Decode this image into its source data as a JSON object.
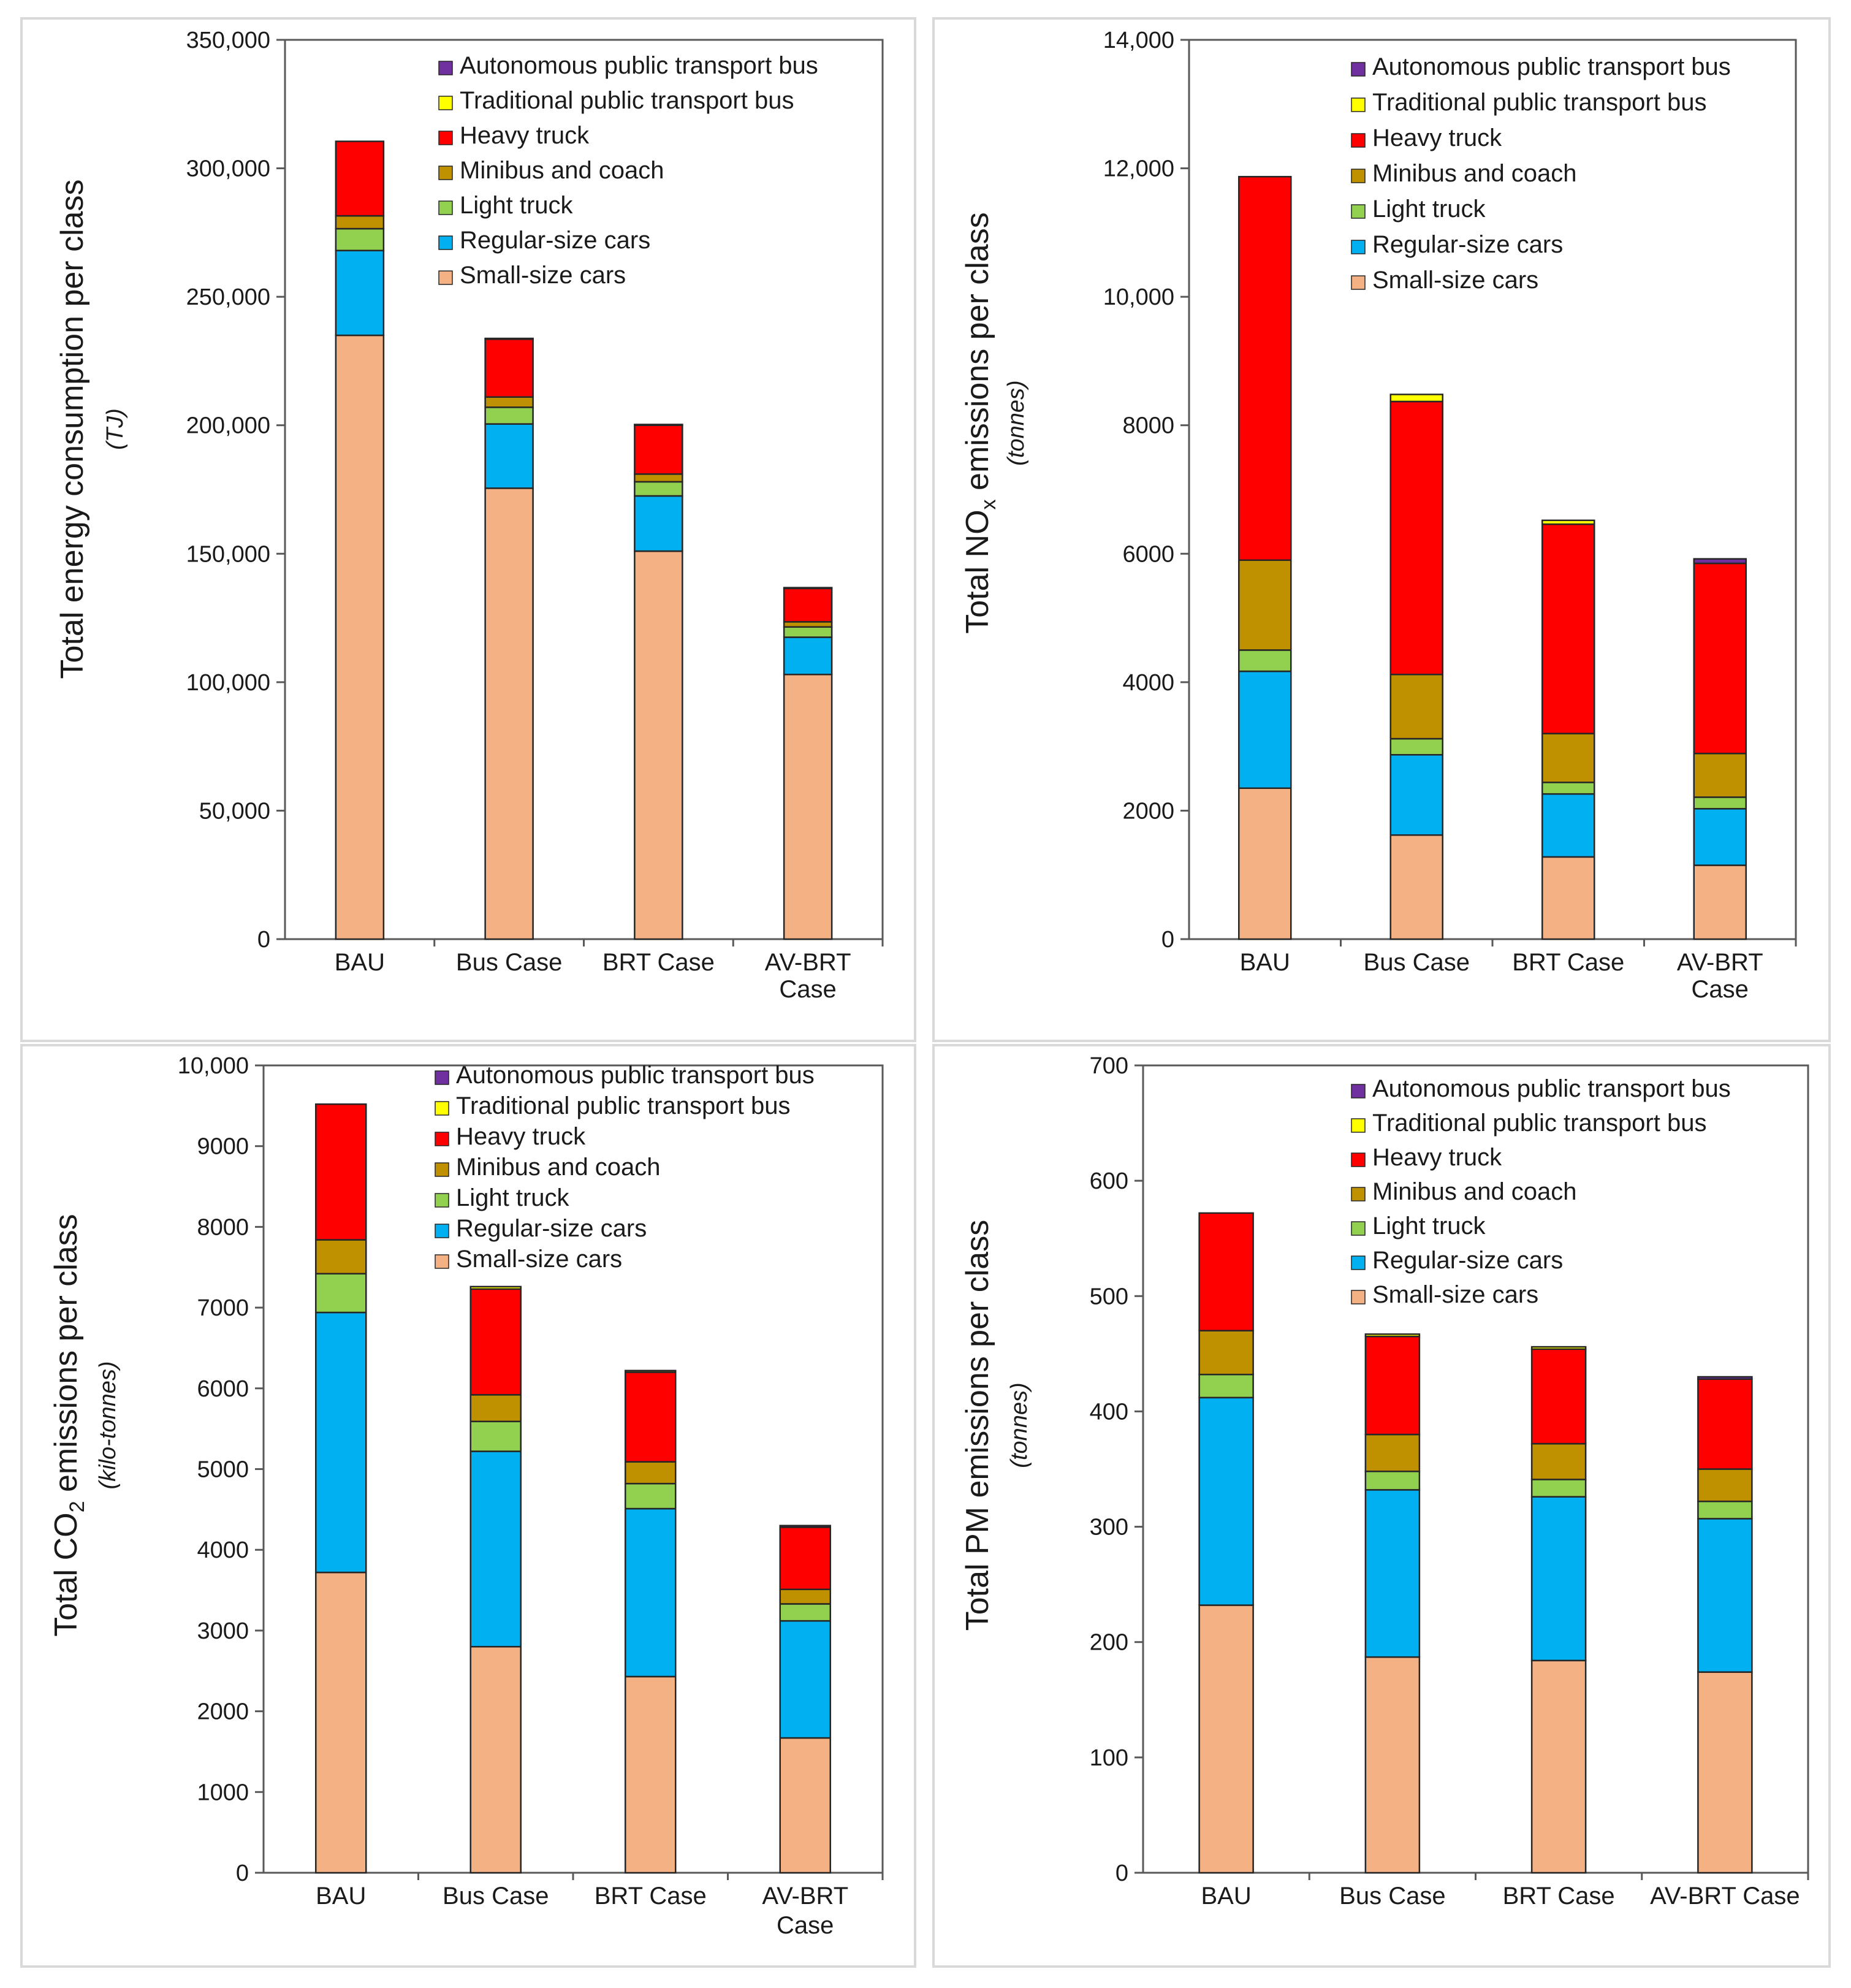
{
  "series_order": [
    "Small-size cars",
    "Regular-size cars",
    "Light truck",
    "Minibus and coach",
    "Heavy truck",
    "Traditional public transport bus",
    "Autonomous public transport bus"
  ],
  "legend_order": [
    "Autonomous public transport bus",
    "Traditional public transport bus",
    "Heavy truck",
    "Minibus and coach",
    "Light truck",
    "Regular-size cars",
    "Small-size cars"
  ],
  "colors": {
    "Small-size cars": "#F4B183",
    "Regular-size cars": "#00B0F0",
    "Light truck": "#92D050",
    "Minibus and coach": "#BF9000",
    "Heavy truck": "#FF0000",
    "Traditional public transport bus": "#FFFF00",
    "Autonomous public transport bus": "#7030A0"
  },
  "chart_data": [
    {
      "type": "bar",
      "stacked": true,
      "title": "",
      "ylabel_main": "Total energy consumption per class",
      "ylabel_sub": null,
      "ylabel_unit": "(TJ)",
      "categories": [
        [
          "BAU"
        ],
        [
          "Bus Case"
        ],
        [
          "BRT Case"
        ],
        [
          "AV-BRT",
          "Case"
        ]
      ],
      "ylim": [
        0,
        350000
      ],
      "yticks": [
        0,
        50000,
        100000,
        150000,
        200000,
        250000,
        300000,
        350000
      ],
      "ytick_labels": [
        "0",
        "50,000",
        "100,000",
        "150,000",
        "200,000",
        "250,000",
        "300,000",
        "350,000"
      ],
      "series": [
        {
          "name": "Small-size cars",
          "values": [
            235000,
            175500,
            151000,
            103000
          ]
        },
        {
          "name": "Regular-size cars",
          "values": [
            33000,
            25000,
            21500,
            14500
          ]
        },
        {
          "name": "Light truck",
          "values": [
            8500,
            6500,
            5500,
            4000
          ]
        },
        {
          "name": "Minibus and coach",
          "values": [
            5000,
            4000,
            3000,
            2000
          ]
        },
        {
          "name": "Heavy truck",
          "values": [
            29000,
            22500,
            19000,
            13000
          ]
        },
        {
          "name": "Traditional public transport bus",
          "values": [
            0,
            300,
            300,
            0
          ]
        },
        {
          "name": "Autonomous public transport bus",
          "values": [
            0,
            0,
            0,
            300
          ]
        }
      ]
    },
    {
      "type": "bar",
      "stacked": true,
      "title": "",
      "ylabel_main": "Total NO",
      "ylabel_sub": "x",
      "ylabel_main2": " emissions per class",
      "ylabel_unit": "(tonnes)",
      "categories": [
        [
          "BAU"
        ],
        [
          "Bus Case"
        ],
        [
          "BRT Case"
        ],
        [
          "AV-BRT",
          "Case"
        ]
      ],
      "ylim": [
        0,
        14000
      ],
      "yticks": [
        0,
        2000,
        4000,
        6000,
        8000,
        10000,
        12000,
        14000
      ],
      "ytick_labels": [
        "0",
        "2000",
        "4000",
        "6000",
        "8000",
        "10,000",
        "12,000",
        "14,000"
      ],
      "series": [
        {
          "name": "Small-size cars",
          "values": [
            2350,
            1620,
            1280,
            1150
          ]
        },
        {
          "name": "Regular-size cars",
          "values": [
            1820,
            1250,
            980,
            880
          ]
        },
        {
          "name": "Light truck",
          "values": [
            330,
            250,
            180,
            180
          ]
        },
        {
          "name": "Minibus and coach",
          "values": [
            1400,
            1000,
            760,
            680
          ]
        },
        {
          "name": "Heavy truck",
          "values": [
            5970,
            4250,
            3260,
            2960
          ]
        },
        {
          "name": "Traditional public transport bus",
          "values": [
            0,
            110,
            60,
            0
          ]
        },
        {
          "name": "Autonomous public transport bus",
          "values": [
            0,
            0,
            0,
            70
          ]
        }
      ]
    },
    {
      "type": "bar",
      "stacked": true,
      "title": "",
      "ylabel_main": "Total CO",
      "ylabel_sub": "2",
      "ylabel_main2": " emissions per class",
      "ylabel_unit": "(kilo-tonnes)",
      "categories": [
        [
          "BAU"
        ],
        [
          "Bus Case"
        ],
        [
          "BRT Case"
        ],
        [
          "AV-BRT",
          "Case"
        ]
      ],
      "ylim": [
        0,
        10000
      ],
      "yticks": [
        0,
        1000,
        2000,
        3000,
        4000,
        5000,
        6000,
        7000,
        8000,
        9000,
        10000
      ],
      "ytick_labels": [
        "0",
        "1000",
        "2000",
        "3000",
        "4000",
        "5000",
        "6000",
        "7000",
        "8000",
        "9000",
        "10,000"
      ],
      "series": [
        {
          "name": "Small-size cars",
          "values": [
            3720,
            2800,
            2430,
            1670
          ]
        },
        {
          "name": "Regular-size cars",
          "values": [
            3220,
            2420,
            2080,
            1450
          ]
        },
        {
          "name": "Light truck",
          "values": [
            480,
            370,
            310,
            210
          ]
        },
        {
          "name": "Minibus and coach",
          "values": [
            420,
            330,
            270,
            180
          ]
        },
        {
          "name": "Heavy truck",
          "values": [
            1680,
            1310,
            1110,
            770
          ]
        },
        {
          "name": "Traditional public transport bus",
          "values": [
            0,
            30,
            20,
            0
          ]
        },
        {
          "name": "Autonomous public transport bus",
          "values": [
            0,
            0,
            0,
            20
          ]
        }
      ]
    },
    {
      "type": "bar",
      "stacked": true,
      "title": "",
      "ylabel_main": "Total PM emissions per class",
      "ylabel_sub": null,
      "ylabel_unit": "(tonnes)",
      "categories": [
        [
          "BAU"
        ],
        [
          "Bus Case"
        ],
        [
          "BRT Case"
        ],
        [
          "AV-BRT Case"
        ]
      ],
      "ylim": [
        0,
        700
      ],
      "yticks": [
        0,
        100,
        200,
        300,
        400,
        500,
        600,
        700
      ],
      "ytick_labels": [
        "0",
        "100",
        "200",
        "300",
        "400",
        "500",
        "600",
        "700"
      ],
      "series": [
        {
          "name": "Small-size cars",
          "values": [
            232,
            187,
            184,
            174
          ]
        },
        {
          "name": "Regular-size cars",
          "values": [
            180,
            145,
            142,
            133
          ]
        },
        {
          "name": "Light truck",
          "values": [
            20,
            16,
            15,
            15
          ]
        },
        {
          "name": "Minibus and coach",
          "values": [
            38,
            32,
            31,
            28
          ]
        },
        {
          "name": "Heavy truck",
          "values": [
            102,
            85,
            82,
            78
          ]
        },
        {
          "name": "Traditional public transport bus",
          "values": [
            0,
            2,
            2,
            0
          ]
        },
        {
          "name": "Autonomous public transport bus",
          "values": [
            0,
            0,
            0,
            2
          ]
        }
      ]
    }
  ]
}
